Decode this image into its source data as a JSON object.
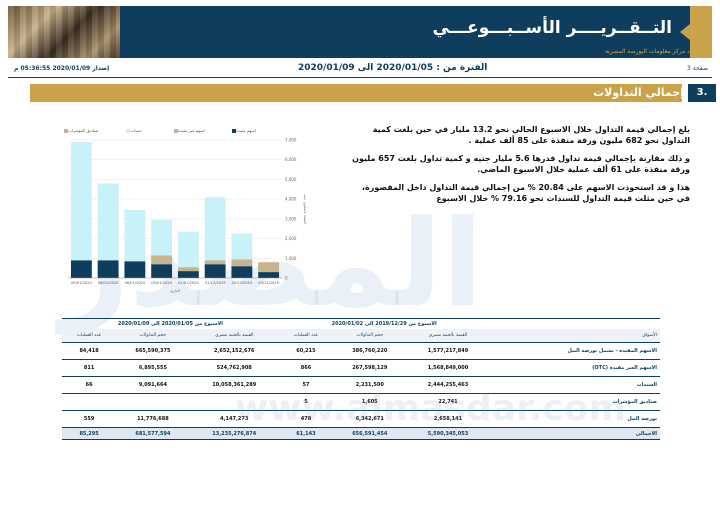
{
  "header": {
    "title": "التــقــريــــر الأســبـــوعـــي",
    "subtitle": "إعداد مركز معلومات البورصة المصرية"
  },
  "infobar": {
    "page": "صفحة 3",
    "period": "الفترة من : 2020/01/05 الى 2020/01/09",
    "issue": "إصدار 2020/01/09 05:36:55 م"
  },
  "section": {
    "number": "3.",
    "title": "إجمالي التداولات"
  },
  "paragraphs": [
    "بلغ إجمالي قيمة التداول خلال الاسبوع الحالي نحو 13.2 مليار في حين بلغت كمية التداول نحو 682 مليون ورقة منفذة على 85 ألف عملية .",
    "و ذلك مقارنة بإجمالي قيمة تداول قدرها 5.6 مليار جنيه و كمية تداول بلغت 657 مليون ورقة منفذة على 61 ألف عملية خلال الاسبوع الماضي.",
    "هذا و قد استحوذت الاسهم على 20.84 % من إجمالي قيمة التداول داخل المقصورة، في حين مثلت قيمة التداول للسندات نحو 79.16 % خلال الاسبوع"
  ],
  "chart_data": {
    "type": "bar",
    "legend": [
      "اسهم مقيدة",
      "اسهم غير مقيدة",
      "سندات",
      "صناديق المؤشرات"
    ],
    "categories": [
      "09/01/2020",
      "08/01/2020",
      "06/01/2020",
      "05/01/2020",
      "01/01/2020",
      "31/12/2019",
      "30/12/2019",
      "29/12/2019"
    ],
    "series": [
      {
        "name": "اسهم مقيدة",
        "color": "#0e3d5e",
        "values": [
          900,
          900,
          850,
          700,
          350,
          700,
          600,
          300
        ]
      },
      {
        "name": "اسهم غير مقيدة",
        "color": "#c8b48a",
        "values": [
          0,
          0,
          0,
          450,
          200,
          200,
          350,
          500
        ]
      },
      {
        "name": "سندات",
        "color": "#c9f2f8",
        "values": [
          6000,
          3900,
          2600,
          1800,
          1800,
          3200,
          1300,
          0
        ]
      }
    ],
    "yticks": [
      "0",
      "1,000",
      "2,000",
      "3,000",
      "4,000",
      "5,000",
      "6,000",
      "7,000"
    ],
    "ylim": [
      0,
      7000
    ],
    "ylabel": "القيمة بالمليون جنيه",
    "xlabel": "التاريخ"
  },
  "table": {
    "group_current": "الاسبوع من 2020/01/05 الى 2020/01/09",
    "group_previous": "الاسبوع من 2019/12/29 الى 2020/01/02",
    "headers_current": [
      "عدد العمليات",
      "حجم التداولات",
      "القيمة بالجنيه مصري"
    ],
    "headers_previous": [
      "عدد العمليات",
      "حجم التداولات",
      "القيمة بالجنيه مصري"
    ],
    "market_header": "الأسواق",
    "rows": [
      {
        "label": "الاسهم المقيدة - تشمل بورصة النيل",
        "c_ops": "84,418",
        "c_vol": "665,590,375",
        "c_val": "2,652,152,676",
        "p_ops": "60,215",
        "p_vol": "386,760,220",
        "p_val": "1,577,217,849"
      },
      {
        "label": "الاسهم الغير مقيدة (OTC)",
        "c_ops": "811",
        "c_vol": "6,895,555",
        "c_val": "524,762,908",
        "p_ops": "866",
        "p_vol": "267,598,129",
        "p_val": "1,568,849,000"
      },
      {
        "label": "السندات",
        "c_ops": "66",
        "c_vol": "9,091,664",
        "c_val": "10,058,361,289",
        "p_ops": "57",
        "p_vol": "2,231,500",
        "p_val": "2,444,255,463"
      },
      {
        "label": "صناديق المؤشرات",
        "c_ops": "",
        "c_vol": "",
        "c_val": "",
        "p_ops": "5",
        "p_vol": "1,605",
        "p_val": "22,741"
      },
      {
        "label": "بورصة النيل",
        "c_ops": "559",
        "c_vol": "11,776,688",
        "c_val": "4,147,273",
        "p_ops": "478",
        "p_vol": "6,342,671",
        "p_val": "2,658,141"
      }
    ],
    "total": {
      "label": "الاجمالي",
      "c_ops": "85,295",
      "c_vol": "681,577,594",
      "c_val": "13,235,276,874",
      "p_ops": "61,143",
      "p_vol": "656,591,454",
      "p_val": "5,590,345,053"
    }
  },
  "watermark": {
    "text": "المصدر",
    "url": "www.almasdar.com"
  }
}
